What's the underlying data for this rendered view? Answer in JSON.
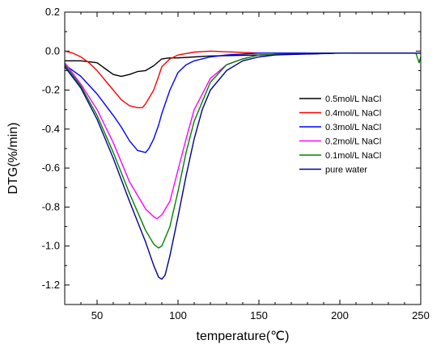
{
  "chart_data": {
    "type": "line",
    "title": "",
    "xlabel": "temperature(℃)",
    "ylabel": "DTG(%/min)",
    "xlim": [
      30,
      250
    ],
    "ylim": [
      -1.3,
      0.2
    ],
    "x_ticks": [
      50,
      100,
      150,
      200,
      250
    ],
    "y_ticks": [
      -1.2,
      -1.0,
      -0.8,
      -0.6,
      -0.4,
      -0.2,
      0.0,
      0.2
    ],
    "x_tick_labels": [
      "50",
      "100",
      "150",
      "200",
      "250"
    ],
    "y_tick_labels": [
      "-1.2",
      "-1.0",
      "-0.8",
      "-0.6",
      "-0.4",
      "-0.2",
      "0.0",
      "0.2"
    ],
    "legend_position": "right",
    "grid": false,
    "series": [
      {
        "name": "0.5mol/L NaCl",
        "color": "#000000",
        "x": [
          30,
          40,
          50,
          55,
          60,
          65,
          70,
          75,
          80,
          85,
          90,
          95,
          100,
          110,
          120,
          150,
          200,
          245,
          250
        ],
        "y": [
          -0.05,
          -0.05,
          -0.06,
          -0.09,
          -0.12,
          -0.13,
          -0.12,
          -0.105,
          -0.1,
          -0.075,
          -0.04,
          -0.035,
          -0.035,
          -0.03,
          -0.025,
          -0.02,
          -0.01,
          -0.01,
          -0.01
        ]
      },
      {
        "name": "0.4mol/L NaCl",
        "color": "#ff0000",
        "x": [
          30,
          35,
          40,
          45,
          50,
          55,
          60,
          65,
          70,
          75,
          78,
          80,
          85,
          88,
          90,
          95,
          100,
          110,
          120,
          150,
          200,
          245,
          250
        ],
        "y": [
          0.0,
          -0.01,
          -0.03,
          -0.06,
          -0.1,
          -0.15,
          -0.2,
          -0.25,
          -0.28,
          -0.29,
          -0.29,
          -0.27,
          -0.2,
          -0.13,
          -0.08,
          -0.04,
          -0.02,
          -0.005,
          0.0,
          -0.01,
          -0.01,
          -0.01,
          -0.01
        ]
      },
      {
        "name": "0.3mol/L NaCl",
        "color": "#0000ff",
        "x": [
          30,
          40,
          50,
          60,
          65,
          70,
          75,
          80,
          82,
          85,
          88,
          90,
          95,
          100,
          105,
          110,
          120,
          130,
          150,
          200,
          250
        ],
        "y": [
          -0.07,
          -0.13,
          -0.22,
          -0.33,
          -0.39,
          -0.46,
          -0.51,
          -0.52,
          -0.5,
          -0.45,
          -0.38,
          -0.32,
          -0.2,
          -0.11,
          -0.07,
          -0.05,
          -0.03,
          -0.02,
          -0.01,
          -0.01,
          -0.01
        ]
      },
      {
        "name": "0.2mol/L NaCl",
        "color": "#ff00ff",
        "x": [
          30,
          40,
          50,
          60,
          70,
          80,
          85,
          87,
          90,
          95,
          100,
          105,
          110,
          120,
          130,
          140,
          150,
          200,
          250
        ],
        "y": [
          -0.06,
          -0.17,
          -0.3,
          -0.47,
          -0.67,
          -0.81,
          -0.85,
          -0.86,
          -0.84,
          -0.77,
          -0.61,
          -0.45,
          -0.3,
          -0.14,
          -0.07,
          -0.04,
          -0.02,
          -0.01,
          -0.01
        ]
      },
      {
        "name": "0.1mol/L NaCl",
        "color": "#008000",
        "x": [
          30,
          40,
          50,
          60,
          70,
          80,
          85,
          88,
          90,
          95,
          100,
          105,
          110,
          120,
          130,
          140,
          150,
          200,
          247,
          249,
          250
        ],
        "y": [
          -0.07,
          -0.18,
          -0.33,
          -0.52,
          -0.73,
          -0.92,
          -0.99,
          -1.01,
          -1.0,
          -0.9,
          -0.72,
          -0.52,
          -0.36,
          -0.16,
          -0.07,
          -0.04,
          -0.02,
          -0.01,
          -0.01,
          -0.06,
          -0.03
        ]
      },
      {
        "name": "pure water",
        "color": "#00008b",
        "x": [
          30,
          40,
          50,
          60,
          70,
          80,
          85,
          88,
          90,
          92,
          95,
          100,
          105,
          110,
          115,
          120,
          130,
          140,
          150,
          160,
          200,
          250
        ],
        "y": [
          -0.08,
          -0.19,
          -0.35,
          -0.55,
          -0.77,
          -0.98,
          -1.1,
          -1.16,
          -1.17,
          -1.15,
          -1.05,
          -0.85,
          -0.64,
          -0.45,
          -0.3,
          -0.2,
          -0.1,
          -0.05,
          -0.03,
          -0.02,
          -0.01,
          -0.01
        ]
      }
    ]
  }
}
